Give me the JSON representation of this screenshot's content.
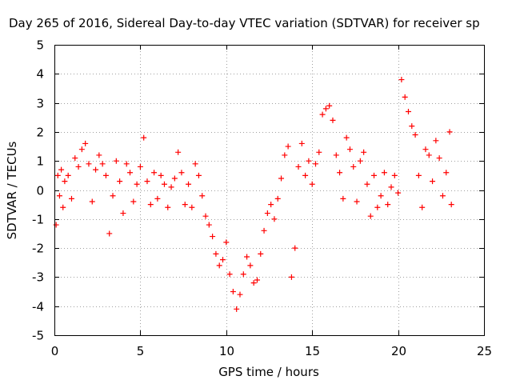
{
  "chart_data": {
    "type": "scatter",
    "title": "Day 265 of 2016, Sidereal Day-to-day VTEC variation (SDTVAR) for receiver sp",
    "xlabel": "GPS time / hours",
    "ylabel": "SDTVAR / TECUs",
    "xlim": [
      0,
      25
    ],
    "ylim": [
      -5,
      5
    ],
    "xticks": [
      "0",
      "5",
      "10",
      "15",
      "20",
      "25"
    ],
    "yticks": [
      "-5",
      "-4",
      "-3",
      "-2",
      "-1",
      "0",
      "1",
      "2",
      "3",
      "4",
      "5"
    ],
    "grid": true,
    "marker": "+",
    "color": "#ff0000",
    "series": [
      {
        "name": "SDTVAR",
        "points": [
          [
            0.1,
            -1.2
          ],
          [
            0.2,
            0.5
          ],
          [
            0.3,
            -0.2
          ],
          [
            0.4,
            0.7
          ],
          [
            0.5,
            -0.6
          ],
          [
            0.6,
            0.3
          ],
          [
            0.8,
            0.5
          ],
          [
            1.0,
            -0.3
          ],
          [
            1.2,
            1.1
          ],
          [
            1.4,
            0.8
          ],
          [
            1.6,
            1.4
          ],
          [
            1.8,
            1.6
          ],
          [
            2.0,
            0.9
          ],
          [
            2.2,
            -0.4
          ],
          [
            2.4,
            0.7
          ],
          [
            2.6,
            1.2
          ],
          [
            2.8,
            0.9
          ],
          [
            3.0,
            0.5
          ],
          [
            3.2,
            -1.5
          ],
          [
            3.4,
            -0.2
          ],
          [
            3.6,
            1.0
          ],
          [
            3.8,
            0.3
          ],
          [
            4.0,
            -0.8
          ],
          [
            4.2,
            0.9
          ],
          [
            4.4,
            0.6
          ],
          [
            4.6,
            -0.4
          ],
          [
            4.8,
            0.2
          ],
          [
            5.0,
            0.8
          ],
          [
            5.2,
            1.8
          ],
          [
            5.4,
            0.3
          ],
          [
            5.6,
            -0.5
          ],
          [
            5.8,
            0.6
          ],
          [
            6.0,
            -0.3
          ],
          [
            6.2,
            0.5
          ],
          [
            6.4,
            0.2
          ],
          [
            6.6,
            -0.6
          ],
          [
            6.8,
            0.1
          ],
          [
            7.0,
            0.4
          ],
          [
            7.2,
            1.3
          ],
          [
            7.4,
            0.6
          ],
          [
            7.6,
            -0.5
          ],
          [
            7.8,
            0.2
          ],
          [
            8.0,
            -0.6
          ],
          [
            8.2,
            0.9
          ],
          [
            8.4,
            0.5
          ],
          [
            8.6,
            -0.2
          ],
          [
            8.8,
            -0.9
          ],
          [
            9.0,
            -1.2
          ],
          [
            9.2,
            -1.6
          ],
          [
            9.4,
            -2.2
          ],
          [
            9.6,
            -2.6
          ],
          [
            9.8,
            -2.4
          ],
          [
            10.0,
            -1.8
          ],
          [
            10.2,
            -2.9
          ],
          [
            10.4,
            -3.5
          ],
          [
            10.6,
            -4.1
          ],
          [
            10.8,
            -3.6
          ],
          [
            11.0,
            -2.9
          ],
          [
            11.2,
            -2.3
          ],
          [
            11.4,
            -2.6
          ],
          [
            11.6,
            -3.2
          ],
          [
            11.8,
            -3.1
          ],
          [
            12.0,
            -2.2
          ],
          [
            12.2,
            -1.4
          ],
          [
            12.4,
            -0.8
          ],
          [
            12.6,
            -0.5
          ],
          [
            12.8,
            -1.0
          ],
          [
            13.0,
            -0.3
          ],
          [
            13.2,
            0.4
          ],
          [
            13.4,
            1.2
          ],
          [
            13.6,
            1.5
          ],
          [
            13.8,
            -3.0
          ],
          [
            14.0,
            -2.0
          ],
          [
            14.2,
            0.8
          ],
          [
            14.4,
            1.6
          ],
          [
            14.6,
            0.5
          ],
          [
            14.8,
            1.0
          ],
          [
            15.0,
            0.2
          ],
          [
            15.2,
            0.9
          ],
          [
            15.4,
            1.3
          ],
          [
            15.6,
            2.6
          ],
          [
            15.8,
            2.8
          ],
          [
            16.0,
            2.9
          ],
          [
            16.2,
            2.4
          ],
          [
            16.4,
            1.2
          ],
          [
            16.6,
            0.6
          ],
          [
            16.8,
            -0.3
          ],
          [
            17.0,
            1.8
          ],
          [
            17.2,
            1.4
          ],
          [
            17.4,
            0.8
          ],
          [
            17.6,
            -0.4
          ],
          [
            17.8,
            1.0
          ],
          [
            18.0,
            1.3
          ],
          [
            18.2,
            0.2
          ],
          [
            18.4,
            -0.9
          ],
          [
            18.6,
            0.5
          ],
          [
            18.8,
            -0.6
          ],
          [
            19.0,
            -0.2
          ],
          [
            19.2,
            0.6
          ],
          [
            19.4,
            -0.5
          ],
          [
            19.6,
            0.1
          ],
          [
            19.8,
            0.5
          ],
          [
            20.0,
            -0.1
          ],
          [
            20.2,
            3.8
          ],
          [
            20.4,
            3.2
          ],
          [
            20.6,
            2.7
          ],
          [
            20.8,
            2.2
          ],
          [
            21.0,
            1.9
          ],
          [
            21.2,
            0.5
          ],
          [
            21.4,
            -0.6
          ],
          [
            21.6,
            1.4
          ],
          [
            21.8,
            1.2
          ],
          [
            22.0,
            0.3
          ],
          [
            22.2,
            1.7
          ],
          [
            22.4,
            1.1
          ],
          [
            22.6,
            -0.2
          ],
          [
            22.8,
            0.6
          ],
          [
            23.0,
            2.0
          ],
          [
            23.1,
            -0.5
          ]
        ]
      }
    ]
  }
}
